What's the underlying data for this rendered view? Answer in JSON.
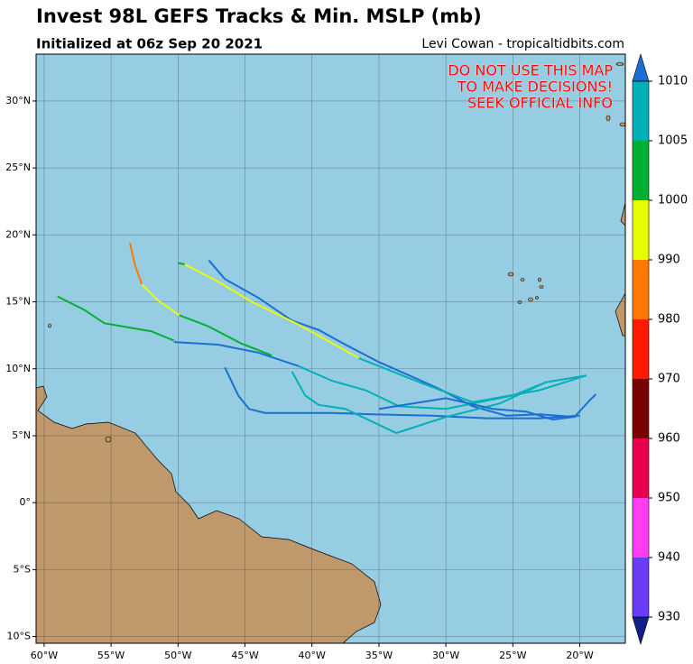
{
  "chart_data": {
    "type": "track-map",
    "title": "Invest 98L GEFS Tracks & Min. MSLP (mb)",
    "subtitle": "Initialized at 06z Sep 20 2021",
    "credit": "Levi Cowan - tropicaltidbits.com",
    "warning": [
      "DO NOT USE THIS MAP",
      "TO MAKE DECISIONS!",
      "SEEK OFFICIAL INFO"
    ],
    "xlim": [
      -60.6,
      -16.6
    ],
    "ylim": [
      -10.5,
      33.5
    ],
    "xticks": [
      {
        "value": -60,
        "label": "60°W"
      },
      {
        "value": -55,
        "label": "55°W"
      },
      {
        "value": -50,
        "label": "50°W"
      },
      {
        "value": -45,
        "label": "45°W"
      },
      {
        "value": -40,
        "label": "40°W"
      },
      {
        "value": -35,
        "label": "35°W"
      },
      {
        "value": -30,
        "label": "30°W"
      },
      {
        "value": -25,
        "label": "25°W"
      },
      {
        "value": -20,
        "label": "20°W"
      }
    ],
    "yticks": [
      {
        "value": -10,
        "label": "10°S"
      },
      {
        "value": -5,
        "label": "5°S"
      },
      {
        "value": 0,
        "label": "0°"
      },
      {
        "value": 5,
        "label": "5°N"
      },
      {
        "value": 10,
        "label": "10°N"
      },
      {
        "value": 15,
        "label": "15°N"
      },
      {
        "value": 20,
        "label": "20°N"
      },
      {
        "value": 25,
        "label": "25°N"
      },
      {
        "value": 30,
        "label": "30°N"
      }
    ],
    "grid": true,
    "colorbar": {
      "levels": [
        930,
        940,
        950,
        960,
        970,
        980,
        990,
        1000,
        1005,
        1010
      ],
      "colors": [
        "#6a3cf5",
        "#ff3cf0",
        "#e8004f",
        "#780000",
        "#ff1a00",
        "#ff7800",
        "#e6ff00",
        "#00b030",
        "#00b0b8"
      ],
      "under_color": "#14208a",
      "over_color": "#1c6ed2"
    },
    "tracks": [
      {
        "color": "#1c6ed2",
        "lon": [
          -18.8,
          -19.3,
          -20.4,
          -23,
          -25.5,
          -28,
          -30.5,
          -32.5,
          -35,
          -37.5,
          -39.5,
          -41.5,
          -44,
          -46.5,
          -47.7
        ],
        "lat": [
          8.1,
          7.6,
          6.4,
          6.6,
          6.5,
          7.2,
          8.5,
          9.4,
          10.5,
          11.8,
          12.9,
          13.6,
          15.3,
          16.7,
          18.1
        ]
      },
      {
        "color": "#00b0b8",
        "lon": [
          -19.5,
          -23,
          -28,
          -32,
          -36.5
        ],
        "lat": [
          9.5,
          8.4,
          7.5,
          9,
          10.8
        ]
      },
      {
        "color": "#e6ff00",
        "lon": [
          -36.5,
          -41,
          -44.5,
          -47,
          -49.5
        ],
        "lat": [
          10.8,
          13.3,
          15,
          16.5,
          17.8
        ]
      },
      {
        "color": "#00b030",
        "lon": [
          -49.5,
          -50
        ],
        "lat": [
          17.8,
          17.9
        ]
      },
      {
        "color": "#00b0b8",
        "lon": [
          -22.5,
          -25,
          -30,
          -33.5,
          -36,
          -38.5,
          -41
        ],
        "lat": [
          9,
          8,
          7,
          7.2,
          8.4,
          9.1,
          10.2
        ]
      },
      {
        "color": "#1c6ed2",
        "lon": [
          -41,
          -44,
          -47,
          -50.3
        ],
        "lat": [
          10.2,
          11.2,
          11.8,
          12
        ]
      },
      {
        "color": "#00b030",
        "lon": [
          -50.3,
          -52,
          -55.5,
          -57,
          -59
        ],
        "lat": [
          12.1,
          12.8,
          13.4,
          14.4,
          15.4
        ]
      },
      {
        "color": "#ff7800",
        "lon": [
          -53.6,
          -53.2,
          -52.7
        ],
        "lat": [
          19.4,
          17.7,
          16.3
        ]
      },
      {
        "color": "#e6ff00",
        "lon": [
          -52.7,
          -51.5,
          -49.9
        ],
        "lat": [
          16.3,
          15.1,
          14
        ]
      },
      {
        "color": "#00b030",
        "lon": [
          -49.9,
          -47.8,
          -45.3,
          -43
        ],
        "lat": [
          14,
          13.2,
          11.9,
          11
        ]
      },
      {
        "color": "#1c6ed2",
        "lon": [
          -46.5,
          -45.5,
          -44.7,
          -43.5,
          -41.5,
          -38.5,
          -35.5,
          -31,
          -27,
          -23,
          -20
        ],
        "lat": [
          10.1,
          8,
          7,
          6.7,
          6.7,
          6.7,
          6.6,
          6.5,
          6.3,
          6.3,
          6.5
        ]
      },
      {
        "color": "#00b0b8",
        "lon": [
          -41.5,
          -40.5,
          -39.5,
          -37.5,
          -33.7,
          -30,
          -26,
          -22.5,
          -19.5
        ],
        "lat": [
          9.8,
          8,
          7.3,
          7,
          5.2,
          6.4,
          7.4,
          9,
          9.5
        ]
      },
      {
        "color": "#1c6ed2",
        "lon": [
          -35,
          -30,
          -26.5,
          -24,
          -22,
          -20.5
        ],
        "lat": [
          7,
          7.8,
          7,
          6.8,
          6.2,
          6.4
        ]
      }
    ]
  }
}
